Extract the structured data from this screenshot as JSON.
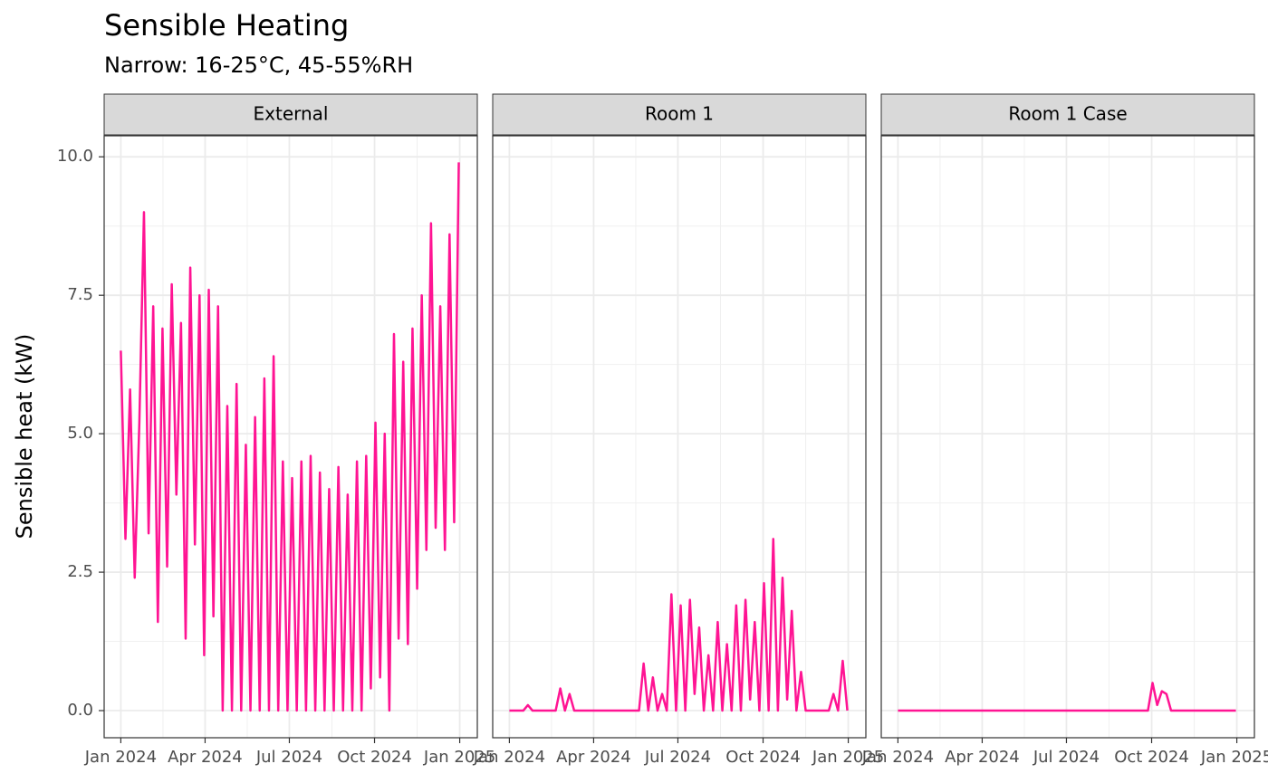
{
  "title": "Sensible Heating",
  "subtitle": "Narrow: 16-25°C, 45-55%RH",
  "y_label": "Sensible heat (kW)",
  "chart_data": [
    {
      "type": "line",
      "title": "External",
      "x": [
        "2024-01-01",
        "2024-01-06",
        "2024-01-11",
        "2024-01-16",
        "2024-01-21",
        "2024-01-26",
        "2024-01-31",
        "2024-02-05",
        "2024-02-10",
        "2024-02-15",
        "2024-02-20",
        "2024-02-25",
        "2024-03-01",
        "2024-03-06",
        "2024-03-11",
        "2024-03-16",
        "2024-03-21",
        "2024-03-26",
        "2024-03-31",
        "2024-04-05",
        "2024-04-10",
        "2024-04-15",
        "2024-04-20",
        "2024-04-25",
        "2024-04-30",
        "2024-05-05",
        "2024-05-10",
        "2024-05-15",
        "2024-05-20",
        "2024-05-25",
        "2024-05-30",
        "2024-06-04",
        "2024-06-09",
        "2024-06-14",
        "2024-06-19",
        "2024-06-24",
        "2024-06-29",
        "2024-07-04",
        "2024-07-09",
        "2024-07-14",
        "2024-07-19",
        "2024-07-24",
        "2024-07-29",
        "2024-08-03",
        "2024-08-08",
        "2024-08-13",
        "2024-08-18",
        "2024-08-23",
        "2024-08-28",
        "2024-09-02",
        "2024-09-07",
        "2024-09-12",
        "2024-09-17",
        "2024-09-22",
        "2024-09-27",
        "2024-10-02",
        "2024-10-07",
        "2024-10-12",
        "2024-10-17",
        "2024-10-22",
        "2024-10-27",
        "2024-11-01",
        "2024-11-06",
        "2024-11-11",
        "2024-11-16",
        "2024-11-21",
        "2024-11-26",
        "2024-12-01",
        "2024-12-06",
        "2024-12-11",
        "2024-12-16",
        "2024-12-21",
        "2024-12-26",
        "2024-12-31"
      ],
      "series": [
        {
          "name": "External",
          "color": "#ff1493",
          "values": [
            6.5,
            3.1,
            5.8,
            2.4,
            5.2,
            9.0,
            3.2,
            7.3,
            1.6,
            6.9,
            2.6,
            7.7,
            3.9,
            7.0,
            1.3,
            8.0,
            3.0,
            7.5,
            1.0,
            7.6,
            1.7,
            7.3,
            0.0,
            5.5,
            0.0,
            5.9,
            0.0,
            4.8,
            0.0,
            5.3,
            0.0,
            6.0,
            0.0,
            6.4,
            0.0,
            4.5,
            0.0,
            4.2,
            0.0,
            4.5,
            0.0,
            4.6,
            0.0,
            4.3,
            0.0,
            4.0,
            0.0,
            4.4,
            0.0,
            3.9,
            0.0,
            4.5,
            0.0,
            4.6,
            0.4,
            5.2,
            0.6,
            5.0,
            0.0,
            6.8,
            1.3,
            6.3,
            1.2,
            6.9,
            2.2,
            7.5,
            2.9,
            8.8,
            3.3,
            7.3,
            2.9,
            8.6,
            3.4,
            9.9
          ]
        }
      ],
      "xlim": [
        "2023-12-14",
        "2025-01-20"
      ],
      "xticks": [
        {
          "value": "2024-01-01",
          "label": "Jan 2024"
        },
        {
          "value": "2024-04-01",
          "label": "Apr 2024"
        },
        {
          "value": "2024-07-01",
          "label": "Jul 2024"
        },
        {
          "value": "2024-10-01",
          "label": "Oct 2024"
        },
        {
          "value": "2025-01-01",
          "label": "Jan 2025"
        }
      ],
      "ylim": [
        -0.49,
        10.38
      ],
      "yticks": [
        {
          "value": 0,
          "label": "0.0"
        },
        2.5,
        {
          "value": 5,
          "label": "5.0"
        },
        7.5,
        {
          "value": 10,
          "label": "10.0"
        }
      ],
      "grid": true
    },
    {
      "type": "line",
      "title": "Room 1",
      "x": [
        "2024-01-01",
        "2024-01-06",
        "2024-01-11",
        "2024-01-16",
        "2024-01-21",
        "2024-01-26",
        "2024-01-31",
        "2024-02-05",
        "2024-02-10",
        "2024-02-15",
        "2024-02-20",
        "2024-02-25",
        "2024-03-01",
        "2024-03-06",
        "2024-03-11",
        "2024-03-16",
        "2024-03-21",
        "2024-03-26",
        "2024-03-31",
        "2024-04-05",
        "2024-04-10",
        "2024-04-15",
        "2024-04-20",
        "2024-04-25",
        "2024-04-30",
        "2024-05-05",
        "2024-05-10",
        "2024-05-15",
        "2024-05-20",
        "2024-05-25",
        "2024-05-30",
        "2024-06-04",
        "2024-06-09",
        "2024-06-14",
        "2024-06-19",
        "2024-06-24",
        "2024-06-29",
        "2024-07-04",
        "2024-07-09",
        "2024-07-14",
        "2024-07-19",
        "2024-07-24",
        "2024-07-29",
        "2024-08-03",
        "2024-08-08",
        "2024-08-13",
        "2024-08-18",
        "2024-08-23",
        "2024-08-28",
        "2024-09-02",
        "2024-09-07",
        "2024-09-12",
        "2024-09-17",
        "2024-09-22",
        "2024-09-27",
        "2024-10-02",
        "2024-10-07",
        "2024-10-12",
        "2024-10-17",
        "2024-10-22",
        "2024-10-27",
        "2024-11-01",
        "2024-11-06",
        "2024-11-11",
        "2024-11-16",
        "2024-11-21",
        "2024-11-26",
        "2024-12-01",
        "2024-12-06",
        "2024-12-11",
        "2024-12-16",
        "2024-12-21",
        "2024-12-26",
        "2024-12-31"
      ],
      "series": [
        {
          "name": "Room 1",
          "color": "#ff1493",
          "values": [
            0,
            0,
            0,
            0,
            0.1,
            0,
            0,
            0,
            0,
            0,
            0,
            0.4,
            0,
            0.3,
            0,
            0,
            0,
            0,
            0,
            0,
            0,
            0,
            0,
            0,
            0,
            0,
            0,
            0,
            0,
            0.85,
            0,
            0.6,
            0,
            0.3,
            0,
            2.1,
            0,
            1.9,
            0,
            2.0,
            0.3,
            1.5,
            0,
            1.0,
            0,
            1.6,
            0,
            1.2,
            0,
            1.9,
            0,
            2.0,
            0.2,
            1.6,
            0,
            2.3,
            0,
            3.1,
            0,
            2.4,
            0.2,
            1.8,
            0,
            0.7,
            0,
            0,
            0,
            0,
            0,
            0,
            0.3,
            0,
            0.9,
            0
          ]
        }
      ],
      "xlim": [
        "2023-12-14",
        "2025-01-20"
      ],
      "xticks": [
        {
          "value": "2024-01-01",
          "label": "Jan 2024"
        },
        {
          "value": "2024-04-01",
          "label": "Apr 2024"
        },
        {
          "value": "2024-07-01",
          "label": "Jul 2024"
        },
        {
          "value": "2024-10-01",
          "label": "Oct 2024"
        },
        {
          "value": "2025-01-01",
          "label": "Jan 2025"
        }
      ],
      "ylim": [
        -0.49,
        10.38
      ],
      "yticks": [
        {
          "value": 0,
          "label": "0.0"
        },
        2.5,
        {
          "value": 5,
          "label": "5.0"
        },
        7.5,
        {
          "value": 10,
          "label": "10.0"
        }
      ],
      "grid": true
    },
    {
      "type": "line",
      "title": "Room 1 Case",
      "x": [
        "2024-01-01",
        "2024-01-06",
        "2024-01-11",
        "2024-01-16",
        "2024-01-21",
        "2024-01-26",
        "2024-01-31",
        "2024-02-05",
        "2024-02-10",
        "2024-02-15",
        "2024-02-20",
        "2024-02-25",
        "2024-03-01",
        "2024-03-06",
        "2024-03-11",
        "2024-03-16",
        "2024-03-21",
        "2024-03-26",
        "2024-03-31",
        "2024-04-05",
        "2024-04-10",
        "2024-04-15",
        "2024-04-20",
        "2024-04-25",
        "2024-04-30",
        "2024-05-05",
        "2024-05-10",
        "2024-05-15",
        "2024-05-20",
        "2024-05-25",
        "2024-05-30",
        "2024-06-04",
        "2024-06-09",
        "2024-06-14",
        "2024-06-19",
        "2024-06-24",
        "2024-06-29",
        "2024-07-04",
        "2024-07-09",
        "2024-07-14",
        "2024-07-19",
        "2024-07-24",
        "2024-07-29",
        "2024-08-03",
        "2024-08-08",
        "2024-08-13",
        "2024-08-18",
        "2024-08-23",
        "2024-08-28",
        "2024-09-02",
        "2024-09-07",
        "2024-09-12",
        "2024-09-17",
        "2024-09-22",
        "2024-09-27",
        "2024-10-02",
        "2024-10-07",
        "2024-10-12",
        "2024-10-17",
        "2024-10-22",
        "2024-10-27",
        "2024-11-01",
        "2024-11-06",
        "2024-11-11",
        "2024-11-16",
        "2024-11-21",
        "2024-11-26",
        "2024-12-01",
        "2024-12-06",
        "2024-12-11",
        "2024-12-16",
        "2024-12-21",
        "2024-12-26",
        "2024-12-31"
      ],
      "series": [
        {
          "name": "Room 1 Case",
          "color": "#ff1493",
          "values": [
            0,
            0,
            0,
            0,
            0,
            0,
            0,
            0,
            0,
            0,
            0,
            0,
            0,
            0,
            0,
            0,
            0,
            0,
            0,
            0,
            0,
            0,
            0,
            0,
            0,
            0,
            0,
            0,
            0,
            0,
            0,
            0,
            0,
            0,
            0,
            0,
            0,
            0,
            0,
            0,
            0,
            0,
            0,
            0,
            0,
            0,
            0,
            0,
            0,
            0,
            0,
            0,
            0,
            0,
            0,
            0.5,
            0.1,
            0.35,
            0.3,
            0,
            0,
            0,
            0,
            0,
            0,
            0,
            0,
            0,
            0,
            0,
            0,
            0,
            0,
            0
          ]
        }
      ],
      "xlim": [
        "2023-12-14",
        "2025-01-20"
      ],
      "xticks": [
        {
          "value": "2024-01-01",
          "label": "Jan 2024"
        },
        {
          "value": "2024-04-01",
          "label": "Apr 2024"
        },
        {
          "value": "2024-07-01",
          "label": "Jul 2024"
        },
        {
          "value": "2024-10-01",
          "label": "Oct 2024"
        },
        {
          "value": "2025-01-01",
          "label": "Jan 2025"
        }
      ],
      "ylim": [
        -0.49,
        10.38
      ],
      "yticks": [
        {
          "value": 0,
          "label": "0.0"
        },
        2.5,
        {
          "value": 5,
          "label": "5.0"
        },
        7.5,
        {
          "value": 10,
          "label": "10.0"
        }
      ],
      "grid": true
    }
  ]
}
